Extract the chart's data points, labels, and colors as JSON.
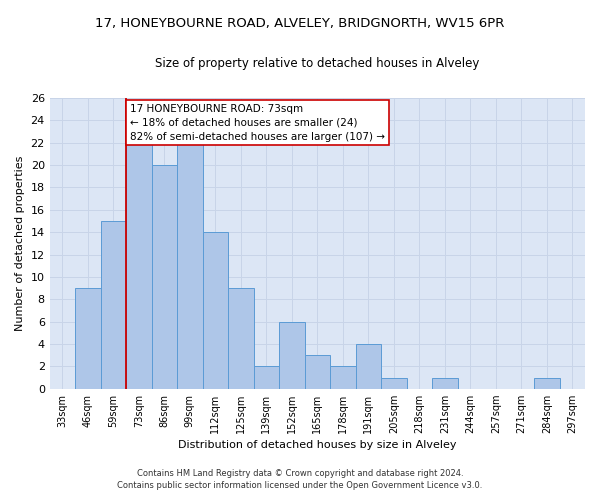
{
  "title1": "17, HONEYBOURNE ROAD, ALVELEY, BRIDGNORTH, WV15 6PR",
  "title2": "Size of property relative to detached houses in Alveley",
  "xlabel": "Distribution of detached houses by size in Alveley",
  "ylabel": "Number of detached properties",
  "categories": [
    "33sqm",
    "46sqm",
    "59sqm",
    "73sqm",
    "86sqm",
    "99sqm",
    "112sqm",
    "125sqm",
    "139sqm",
    "152sqm",
    "165sqm",
    "178sqm",
    "191sqm",
    "205sqm",
    "218sqm",
    "231sqm",
    "244sqm",
    "257sqm",
    "271sqm",
    "284sqm",
    "297sqm"
  ],
  "values": [
    0,
    9,
    15,
    22,
    20,
    22,
    14,
    9,
    2,
    6,
    3,
    2,
    4,
    1,
    0,
    1,
    0,
    0,
    0,
    1,
    0
  ],
  "bar_color": "#aec6e8",
  "bar_edge_color": "#5b9bd5",
  "highlight_index": 3,
  "annotation_title": "17 HONEYBOURNE ROAD: 73sqm",
  "annotation_line1": "← 18% of detached houses are smaller (24)",
  "annotation_line2": "82% of semi-detached houses are larger (107) →",
  "annotation_box_color": "#ffffff",
  "annotation_box_edge_color": "#cc0000",
  "vline_color": "#cc0000",
  "ylim": [
    0,
    26
  ],
  "yticks": [
    0,
    2,
    4,
    6,
    8,
    10,
    12,
    14,
    16,
    18,
    20,
    22,
    24,
    26
  ],
  "grid_color": "#c8d4e8",
  "bg_color": "#dce6f5",
  "footer1": "Contains HM Land Registry data © Crown copyright and database right 2024.",
  "footer2": "Contains public sector information licensed under the Open Government Licence v3.0."
}
